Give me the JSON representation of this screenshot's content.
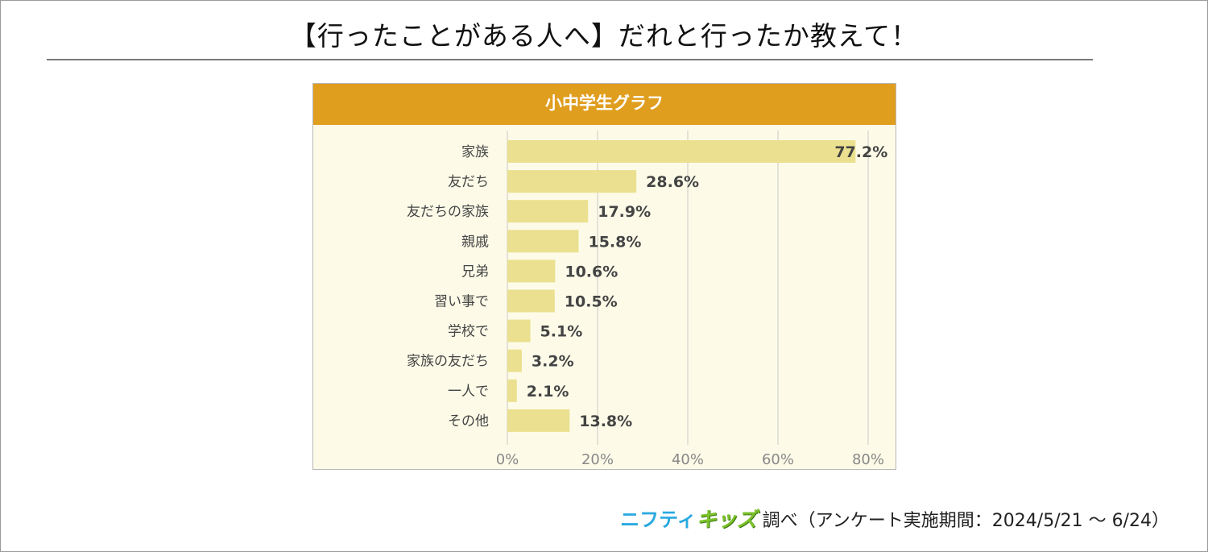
{
  "page": {
    "title": "【行ったことがある人へ】だれと行ったか教えて！"
  },
  "footer": {
    "brand_a": "ニフティ",
    "brand_b": "キッズ",
    "note": "調べ（アンケート実施期間：2024/5/21 ～ 6/24）"
  },
  "colors": {
    "header": "#e09e1f",
    "bar": "#ebe08f",
    "plot_bg": "#fdfbe8",
    "grid": "#c9c9c9"
  },
  "chart_data": {
    "type": "bar",
    "orientation": "horizontal",
    "title": "小中学生グラフ",
    "categories": [
      "家族",
      "友だち",
      "友だちの家族",
      "親戚",
      "兄弟",
      "習い事で",
      "学校で",
      "家族の友だち",
      "一人で",
      "その他"
    ],
    "values": [
      77.2,
      28.6,
      17.9,
      15.8,
      10.6,
      10.5,
      5.1,
      3.2,
      2.1,
      13.8
    ],
    "value_labels": [
      "77.2%",
      "28.6%",
      "17.9%",
      "15.8%",
      "10.6%",
      "10.5%",
      "5.1%",
      "3.2%",
      "2.1%",
      "13.8%"
    ],
    "xlim": [
      0,
      80
    ],
    "xticks": [
      0,
      20,
      40,
      60,
      80
    ],
    "xtick_labels": [
      "0%",
      "20%",
      "40%",
      "60%",
      "80%"
    ],
    "grid": true
  }
}
